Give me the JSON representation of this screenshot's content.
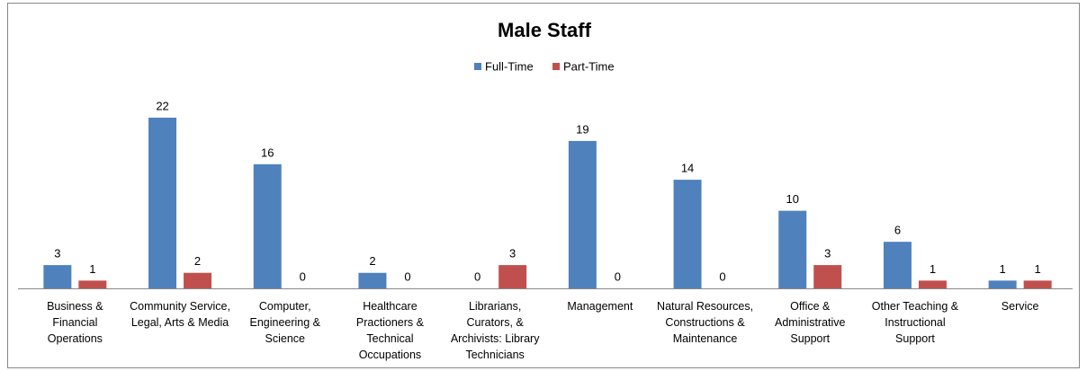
{
  "chart_data": {
    "type": "bar",
    "title": "Male Staff",
    "categories": [
      "Business & Financial Operations",
      "Community Service, Legal, Arts & Media",
      "Computer, Engineering & Science",
      "Healthcare Practioners & Technical Occupations",
      "Librarians, Curators, & Archivists: Library Technicians",
      "Management",
      "Natural Resources, Constructions & Maintenance",
      "Office & Administrative Support",
      "Other Teaching & Instructional Support",
      "Service"
    ],
    "series": [
      {
        "name": "Full-Time",
        "color": "#4f81bd",
        "values": [
          3,
          22,
          16,
          2,
          0,
          19,
          14,
          10,
          6,
          1
        ]
      },
      {
        "name": "Part-Time",
        "color": "#c0504d",
        "values": [
          1,
          2,
          0,
          0,
          3,
          0,
          0,
          3,
          1,
          1
        ]
      }
    ],
    "legend": "top"
  }
}
